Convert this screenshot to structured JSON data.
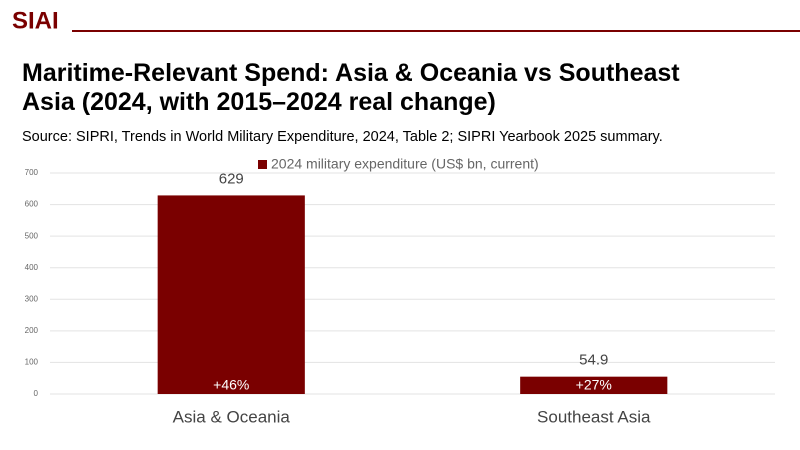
{
  "brand": "SIAI",
  "chart_data": {
    "type": "bar",
    "title": "Maritime-Relevant Spend: Asia & Oceania vs Southeast Asia (2024, with 2015–2024 real change)",
    "subtitle": "Source: SIPRI, Trends in World Military Expenditure, 2024, Table 2; SIPRI Yearbook 2025 summary.",
    "categories": [
      "Asia & Oceania",
      "Southeast Asia"
    ],
    "series": [
      {
        "name": "2024 military expenditure (US$ bn, current)",
        "color": "#7a0000",
        "values": [
          629,
          54.9
        ]
      }
    ],
    "annotations": [
      "+46%",
      "+27%"
    ],
    "ylim": [
      0,
      700
    ],
    "yticks": [
      0,
      100,
      200,
      300,
      400,
      500,
      600,
      700
    ],
    "grid": true,
    "legend": "top"
  }
}
